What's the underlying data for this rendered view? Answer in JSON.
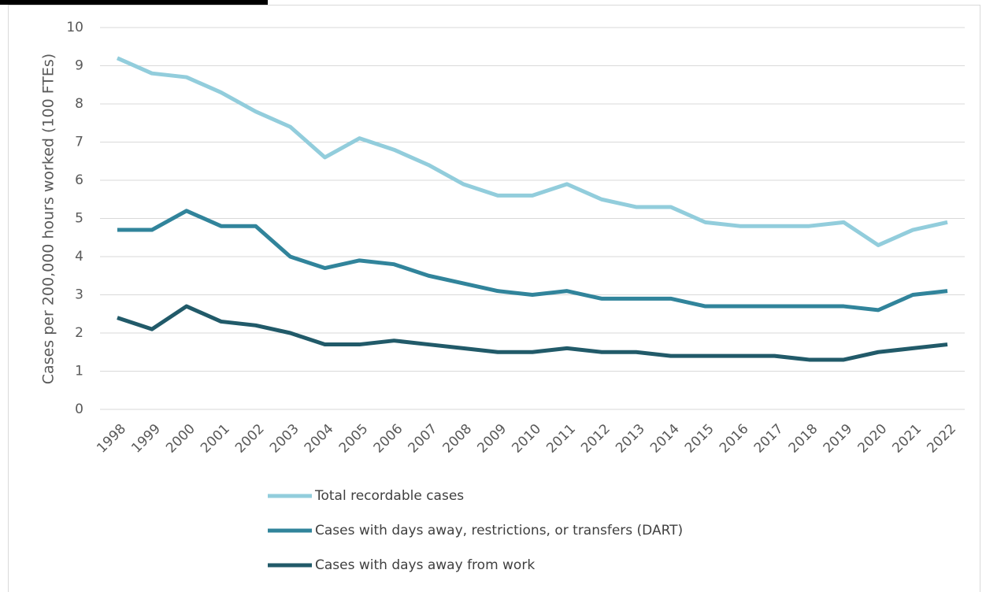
{
  "chart_data": {
    "type": "line",
    "y_label": "Cases per 200,000 hours worked (100 FTEs)",
    "categories": [
      "1998",
      "1999",
      "2000",
      "2001",
      "2002",
      "2003",
      "2004",
      "2005",
      "2006",
      "2007",
      "2008",
      "2009",
      "2010",
      "2011",
      "2012",
      "2013",
      "2014",
      "2015",
      "2016",
      "2017",
      "2018",
      "2019",
      "2020",
      "2021",
      "2022"
    ],
    "series": [
      {
        "name": "Total recordable cases",
        "color": "#92cddc",
        "values": [
          9.2,
          8.8,
          8.7,
          8.3,
          7.8,
          7.4,
          6.6,
          7.1,
          6.8,
          6.4,
          5.9,
          5.6,
          5.6,
          5.9,
          5.5,
          5.3,
          5.3,
          4.9,
          4.8,
          4.8,
          4.8,
          4.9,
          4.3,
          4.7,
          4.9
        ]
      },
      {
        "name": "Cases with days away, restrictions, or transfers (DART)",
        "color": "#31849b",
        "values": [
          4.7,
          4.7,
          5.2,
          4.8,
          4.8,
          4.0,
          3.7,
          3.9,
          3.8,
          3.5,
          3.3,
          3.1,
          3.0,
          3.1,
          2.9,
          2.9,
          2.9,
          2.7,
          2.7,
          2.7,
          2.7,
          2.7,
          2.6,
          3.0,
          3.1
        ]
      },
      {
        "name": "Cases with days away from work",
        "color": "#215a69",
        "values": [
          2.4,
          2.1,
          2.7,
          2.3,
          2.2,
          2.0,
          1.7,
          1.7,
          1.8,
          1.7,
          1.6,
          1.5,
          1.5,
          1.6,
          1.5,
          1.5,
          1.4,
          1.4,
          1.4,
          1.4,
          1.3,
          1.3,
          1.5,
          1.6,
          1.7
        ]
      }
    ],
    "ylim": [
      0,
      10
    ],
    "yticks": [
      0,
      1,
      2,
      3,
      4,
      5,
      6,
      7,
      8,
      9,
      10
    ],
    "grid": true,
    "legend": "bottom"
  }
}
